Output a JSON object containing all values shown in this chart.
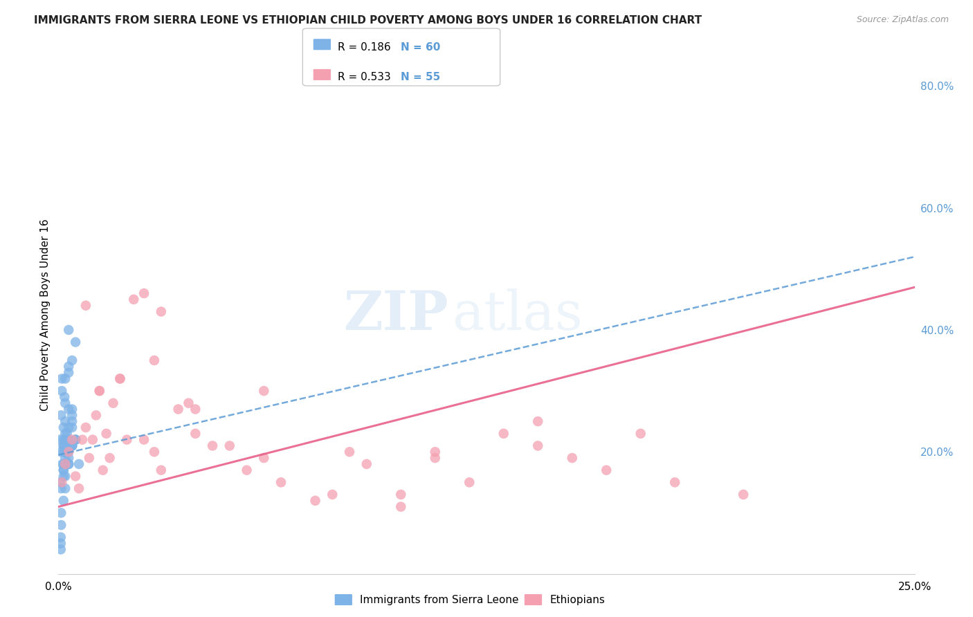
{
  "title": "IMMIGRANTS FROM SIERRA LEONE VS ETHIOPIAN CHILD POVERTY AMONG BOYS UNDER 16 CORRELATION CHART",
  "source": "Source: ZipAtlas.com",
  "ylabel": "Child Poverty Among Boys Under 16",
  "legend_label1": "Immigrants from Sierra Leone",
  "legend_label2": "Ethiopians",
  "legend_r1": "R = 0.186",
  "legend_n1": "N = 60",
  "legend_r2": "R = 0.533",
  "legend_n2": "N = 55",
  "watermark_zip": "ZIP",
  "watermark_atlas": "atlas",
  "color_blue": "#7EB3E8",
  "color_pink": "#F4A0B0",
  "line_blue": "#5B9BD5",
  "line_pink": "#E8608A",
  "background": "#FFFFFF",
  "grid_color": "#DDDDDD",
  "right_axis_color": "#5B9BD5",
  "title_color": "#222222",
  "source_color": "#999999",
  "sl_x": [
    0.0005,
    0.001,
    0.0015,
    0.0008,
    0.002,
    0.0025,
    0.003,
    0.0018,
    0.001,
    0.0005,
    0.002,
    0.003,
    0.004,
    0.0022,
    0.0012,
    0.0008,
    0.004,
    0.005,
    0.005,
    0.006,
    0.003,
    0.002,
    0.004,
    0.0015,
    0.0008,
    0.002,
    0.003,
    0.004,
    0.005,
    0.004,
    0.0015,
    0.0007,
    0.0025,
    0.003,
    0.0015,
    0.002,
    0.0008,
    0.004,
    0.0015,
    0.003,
    0.002,
    0.0015,
    0.0008,
    0.003,
    0.002,
    0.0015,
    0.004,
    0.002,
    0.003,
    0.0015,
    0.0007,
    0.002,
    0.005,
    0.003,
    0.0015,
    0.0007,
    0.002,
    0.0015,
    0.003,
    0.004
  ],
  "sl_y": [
    0.22,
    0.3,
    0.24,
    0.26,
    0.28,
    0.23,
    0.27,
    0.29,
    0.32,
    0.15,
    0.25,
    0.33,
    0.35,
    0.2,
    0.18,
    0.1,
    0.21,
    0.22,
    0.38,
    0.18,
    0.4,
    0.32,
    0.27,
    0.22,
    0.2,
    0.19,
    0.34,
    0.24,
    0.22,
    0.26,
    0.21,
    0.05,
    0.22,
    0.24,
    0.18,
    0.22,
    0.14,
    0.25,
    0.16,
    0.22,
    0.2,
    0.21,
    0.08,
    0.18,
    0.23,
    0.2,
    0.21,
    0.16,
    0.18,
    0.12,
    0.06,
    0.14,
    0.22,
    0.2,
    0.17,
    0.04,
    0.21,
    0.17,
    0.19,
    0.21
  ],
  "eth_x": [
    0.001,
    0.002,
    0.003,
    0.004,
    0.005,
    0.006,
    0.007,
    0.008,
    0.009,
    0.01,
    0.011,
    0.012,
    0.013,
    0.014,
    0.015,
    0.016,
    0.018,
    0.02,
    0.008,
    0.025,
    0.028,
    0.03,
    0.035,
    0.04,
    0.012,
    0.018,
    0.022,
    0.028,
    0.038,
    0.045,
    0.055,
    0.065,
    0.075,
    0.09,
    0.1,
    0.11,
    0.12,
    0.14,
    0.15,
    0.16,
    0.17,
    0.18,
    0.025,
    0.03,
    0.04,
    0.05,
    0.06,
    0.08,
    0.1,
    0.13,
    0.06,
    0.085,
    0.11,
    0.14,
    0.2
  ],
  "eth_y": [
    0.15,
    0.18,
    0.2,
    0.22,
    0.16,
    0.14,
    0.22,
    0.24,
    0.19,
    0.22,
    0.26,
    0.3,
    0.17,
    0.23,
    0.19,
    0.28,
    0.32,
    0.22,
    0.44,
    0.22,
    0.2,
    0.17,
    0.27,
    0.23,
    0.3,
    0.32,
    0.45,
    0.35,
    0.28,
    0.21,
    0.17,
    0.15,
    0.12,
    0.18,
    0.13,
    0.19,
    0.15,
    0.21,
    0.19,
    0.17,
    0.23,
    0.15,
    0.46,
    0.43,
    0.27,
    0.21,
    0.19,
    0.13,
    0.11,
    0.23,
    0.3,
    0.2,
    0.2,
    0.25,
    0.13
  ],
  "sl_line_x": [
    0.0,
    0.25
  ],
  "sl_line_y": [
    0.195,
    0.52
  ],
  "eth_line_x": [
    0.0,
    0.25
  ],
  "eth_line_y": [
    0.11,
    0.47
  ],
  "xlim": [
    0.0,
    0.25
  ],
  "ylim": [
    0.0,
    0.85
  ],
  "yticks": [
    0.2,
    0.4,
    0.6,
    0.8
  ],
  "ytick_labels": [
    "20.0%",
    "40.0%",
    "60.0%",
    "80.0%"
  ],
  "xticks": [
    0.0,
    0.25
  ],
  "xtick_labels": [
    "0.0%",
    "25.0%"
  ]
}
